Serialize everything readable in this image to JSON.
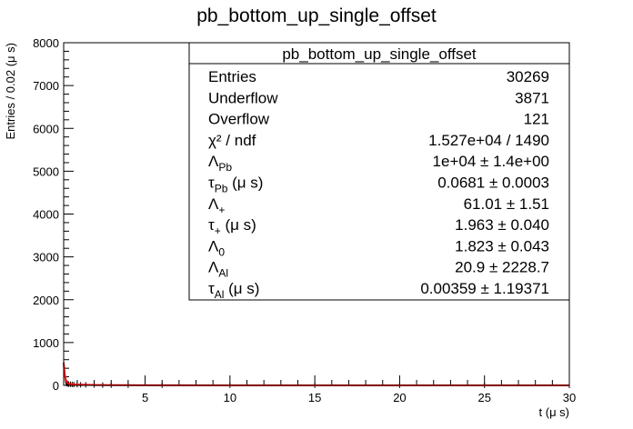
{
  "chart_data": {
    "type": "line",
    "title": "pb_bottom_up_single_offset",
    "xlabel": "t (μ s)",
    "ylabel": "Entries / 0.02 (μ s)",
    "xlim": [
      0.2,
      30
    ],
    "ylim": [
      0,
      8000
    ],
    "x_ticks": [
      5,
      10,
      15,
      20,
      25,
      30
    ],
    "y_ticks": [
      0,
      1000,
      2000,
      3000,
      4000,
      5000,
      6000,
      7000,
      8000
    ],
    "grid": false,
    "series": [
      {
        "kind": "histogram",
        "color": "#000000",
        "x": [
          0.21,
          0.23,
          0.25,
          0.27,
          0.29,
          0.31,
          0.33,
          0.35,
          0.37,
          0.39,
          0.41,
          0.45,
          0.5,
          0.6,
          0.7,
          0.8,
          1.0,
          1.2,
          1.5,
          2.0,
          2.5,
          3.0,
          4.0,
          6.0,
          10.0,
          15.0,
          20.0,
          25.0,
          30.0
        ],
        "y": [
          480,
          420,
          330,
          250,
          180,
          130,
          95,
          70,
          55,
          45,
          40,
          35,
          30,
          25,
          22,
          20,
          17,
          14,
          12,
          9,
          7,
          5,
          4,
          3,
          2,
          2,
          1,
          1,
          1
        ]
      },
      {
        "kind": "fit",
        "color": "#ff0000",
        "x": [
          0.2,
          0.22,
          0.25,
          0.28,
          0.31,
          0.35,
          0.4,
          0.5,
          0.6,
          0.8,
          1.0,
          1.5,
          2.0,
          3.0,
          5.0,
          10.0,
          20.0,
          30.0
        ],
        "y": [
          530,
          420,
          300,
          210,
          150,
          100,
          65,
          40,
          30,
          22,
          18,
          13,
          9,
          6,
          3,
          1,
          0.5,
          0.2
        ]
      }
    ],
    "stats_box": {
      "title": "pb_bottom_up_single_offset",
      "rows": [
        {
          "label": "Entries",
          "sub": "",
          "suffix": "",
          "value": "30269"
        },
        {
          "label": "Underflow",
          "sub": "",
          "suffix": "",
          "value": "3871"
        },
        {
          "label": "Overflow",
          "sub": "",
          "suffix": "",
          "value": "121"
        },
        {
          "label": "χ² / ndf",
          "sub": "",
          "suffix": "",
          "value": "1.527e+04 / 1490"
        },
        {
          "label": "Λ",
          "sub": "Pb",
          "suffix": "",
          "value": "1e+04 ± 1.4e+00"
        },
        {
          "label": "τ",
          "sub": "Pb",
          "suffix": " (μ s)",
          "value": "0.0681 ± 0.0003"
        },
        {
          "label": "Λ",
          "sub": "+",
          "suffix": "",
          "value": "61.01 ± 1.51"
        },
        {
          "label": "τ",
          "sub": "+",
          "suffix": " (μ s)",
          "value": "1.963 ± 0.040"
        },
        {
          "label": "Λ",
          "sub": "0",
          "suffix": "",
          "value": "1.823 ± 0.043"
        },
        {
          "label": "Λ",
          "sub": "Al",
          "suffix": "",
          "value": "20.9 ± 2228.7"
        },
        {
          "label": "τ",
          "sub": "Al",
          "suffix": " (μ s)",
          "value": "0.00359 ± 1.19371"
        }
      ]
    }
  }
}
